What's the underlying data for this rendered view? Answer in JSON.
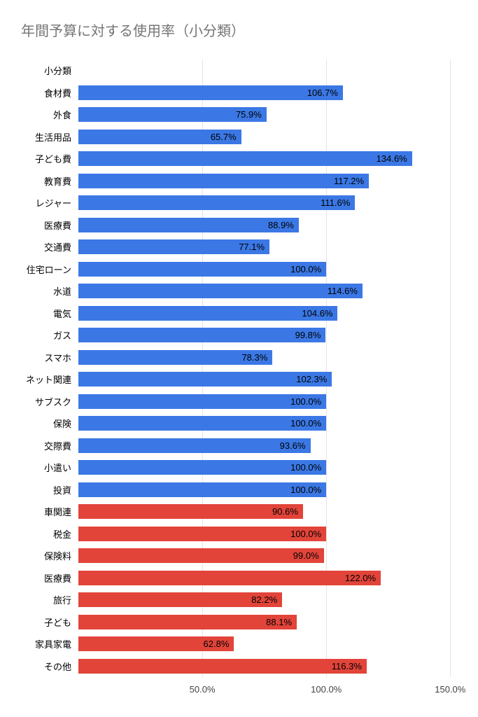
{
  "title": "年間予算に対する使用率（小分類）",
  "chart_data": {
    "type": "bar",
    "orientation": "horizontal",
    "title": "年間予算に対する使用率（小分類）",
    "xlabel": "",
    "ylabel": "小分類",
    "xlim": [
      0,
      155
    ],
    "grid": true,
    "legend": "none",
    "x_ticks": [
      {
        "value": 50,
        "label": "50.0%"
      },
      {
        "value": 100,
        "label": "100.0%"
      },
      {
        "value": 150,
        "label": "150.0%"
      }
    ],
    "colors": {
      "blue": "#3b78e5",
      "red": "#e2443a"
    },
    "rows": [
      {
        "category": "小分類",
        "value": null,
        "value_label": "",
        "color": null
      },
      {
        "category": "食材費",
        "value": 106.7,
        "value_label": "106.7%",
        "color": "blue"
      },
      {
        "category": "外食",
        "value": 75.9,
        "value_label": "75.9%",
        "color": "blue"
      },
      {
        "category": "生活用品",
        "value": 65.7,
        "value_label": "65.7%",
        "color": "blue"
      },
      {
        "category": "子ども費",
        "value": 134.6,
        "value_label": "134.6%",
        "color": "blue"
      },
      {
        "category": "教育費",
        "value": 117.2,
        "value_label": "117.2%",
        "color": "blue"
      },
      {
        "category": "レジャー",
        "value": 111.6,
        "value_label": "111.6%",
        "color": "blue"
      },
      {
        "category": "医療費",
        "value": 88.9,
        "value_label": "88.9%",
        "color": "blue"
      },
      {
        "category": "交通費",
        "value": 77.1,
        "value_label": "77.1%",
        "color": "blue"
      },
      {
        "category": "住宅ローン",
        "value": 100.0,
        "value_label": "100.0%",
        "color": "blue"
      },
      {
        "category": "水道",
        "value": 114.6,
        "value_label": "114.6%",
        "color": "blue"
      },
      {
        "category": "電気",
        "value": 104.6,
        "value_label": "104.6%",
        "color": "blue"
      },
      {
        "category": "ガス",
        "value": 99.8,
        "value_label": "99.8%",
        "color": "blue"
      },
      {
        "category": "スマホ",
        "value": 78.3,
        "value_label": "78.3%",
        "color": "blue"
      },
      {
        "category": "ネット関連",
        "value": 102.3,
        "value_label": "102.3%",
        "color": "blue"
      },
      {
        "category": "サブスク",
        "value": 100.0,
        "value_label": "100.0%",
        "color": "blue"
      },
      {
        "category": "保険",
        "value": 100.0,
        "value_label": "100.0%",
        "color": "blue"
      },
      {
        "category": "交際費",
        "value": 93.6,
        "value_label": "93.6%",
        "color": "blue"
      },
      {
        "category": "小遣い",
        "value": 100.0,
        "value_label": "100.0%",
        "color": "blue"
      },
      {
        "category": "投資",
        "value": 100.0,
        "value_label": "100.0%",
        "color": "blue"
      },
      {
        "category": "車関連",
        "value": 90.6,
        "value_label": "90.6%",
        "color": "red"
      },
      {
        "category": "税金",
        "value": 100.0,
        "value_label": "100.0%",
        "color": "red"
      },
      {
        "category": "保険料",
        "value": 99.0,
        "value_label": "99.0%",
        "color": "red"
      },
      {
        "category": "医療費",
        "value": 122.0,
        "value_label": "122.0%",
        "color": "red"
      },
      {
        "category": "旅行",
        "value": 82.2,
        "value_label": "82.2%",
        "color": "red"
      },
      {
        "category": "子ども",
        "value": 88.1,
        "value_label": "88.1%",
        "color": "red"
      },
      {
        "category": "家具家電",
        "value": 62.8,
        "value_label": "62.8%",
        "color": "red"
      },
      {
        "category": "その他",
        "value": 116.3,
        "value_label": "116.3%",
        "color": "red"
      }
    ]
  }
}
